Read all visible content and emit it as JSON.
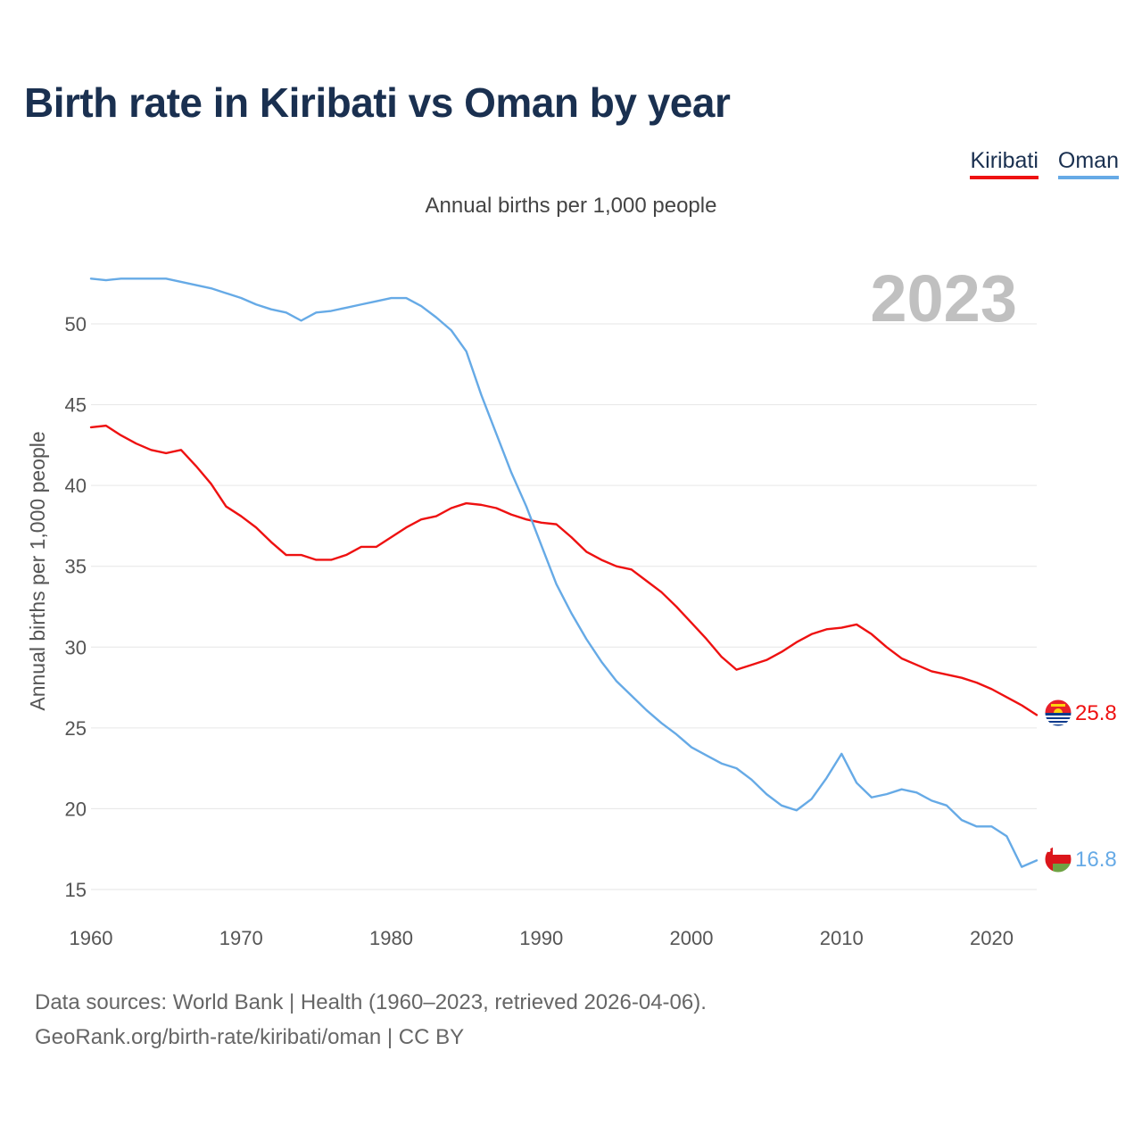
{
  "header": {
    "title": "Birth rate in Kiribati vs Oman by year",
    "subtitle": "Annual births per 1,000 people"
  },
  "legend": [
    {
      "label": "Kiribati",
      "color": "#ee1111"
    },
    {
      "label": "Oman",
      "color": "#66aae6"
    }
  ],
  "footer": {
    "line1": "Data sources: World Bank | Health (1960–2023, retrieved 2026-04-06).",
    "line2": "GeoRank.org/birth-rate/kiribati/oman | CC BY"
  },
  "chart_data": {
    "type": "line",
    "title": "Birth rate in Kiribati vs Oman by year",
    "ylabel": "Annual births per 1,000 people",
    "xlabel": "",
    "xlim": [
      1960,
      2023
    ],
    "ylim": [
      13.5,
      54
    ],
    "x_ticks": [
      1960,
      1970,
      1980,
      1990,
      2000,
      2010,
      2020
    ],
    "y_ticks": [
      15,
      20,
      25,
      30,
      35,
      40,
      45,
      50
    ],
    "grid": true,
    "year_label": "2023",
    "x": [
      1960,
      1961,
      1962,
      1963,
      1964,
      1965,
      1966,
      1967,
      1968,
      1969,
      1970,
      1971,
      1972,
      1973,
      1974,
      1975,
      1976,
      1977,
      1978,
      1979,
      1980,
      1981,
      1982,
      1983,
      1984,
      1985,
      1986,
      1987,
      1988,
      1989,
      1990,
      1991,
      1992,
      1993,
      1994,
      1995,
      1996,
      1997,
      1998,
      1999,
      2000,
      2001,
      2002,
      2003,
      2004,
      2005,
      2006,
      2007,
      2008,
      2009,
      2010,
      2011,
      2012,
      2013,
      2014,
      2015,
      2016,
      2017,
      2018,
      2019,
      2020,
      2021,
      2022,
      2023
    ],
    "series": [
      {
        "name": "Kiribati",
        "color": "#ee1111",
        "end_label": "25.8",
        "values": [
          43.6,
          43.7,
          43.1,
          42.6,
          42.2,
          42.0,
          42.2,
          41.2,
          40.1,
          38.7,
          38.1,
          37.4,
          36.5,
          35.7,
          35.7,
          35.4,
          35.4,
          35.7,
          36.2,
          36.2,
          36.8,
          37.4,
          37.9,
          38.1,
          38.6,
          38.9,
          38.8,
          38.6,
          38.2,
          37.9,
          37.7,
          37.6,
          36.8,
          35.9,
          35.4,
          35.0,
          34.8,
          34.1,
          33.4,
          32.5,
          31.5,
          30.5,
          29.4,
          28.6,
          28.9,
          29.2,
          29.7,
          30.3,
          30.8,
          31.1,
          31.2,
          31.4,
          30.8,
          30.0,
          29.3,
          28.9,
          28.5,
          28.3,
          28.1,
          27.8,
          27.4,
          26.9,
          26.4,
          25.8
        ]
      },
      {
        "name": "Oman",
        "color": "#66aae6",
        "end_label": "16.8",
        "values": [
          52.8,
          52.7,
          52.8,
          52.8,
          52.8,
          52.8,
          52.6,
          52.4,
          52.2,
          51.9,
          51.6,
          51.2,
          50.9,
          50.7,
          50.2,
          50.7,
          50.8,
          51.0,
          51.2,
          51.4,
          51.6,
          51.6,
          51.1,
          50.4,
          49.6,
          48.3,
          45.6,
          43.2,
          40.8,
          38.7,
          36.3,
          33.9,
          32.1,
          30.5,
          29.1,
          27.9,
          27.0,
          26.1,
          25.3,
          24.6,
          23.8,
          23.3,
          22.8,
          22.5,
          21.8,
          20.9,
          20.2,
          19.9,
          20.6,
          21.9,
          23.4,
          21.6,
          20.7,
          20.9,
          21.2,
          21.0,
          20.5,
          20.2,
          19.3,
          18.9,
          18.9,
          18.3,
          16.4,
          16.8
        ]
      }
    ]
  }
}
